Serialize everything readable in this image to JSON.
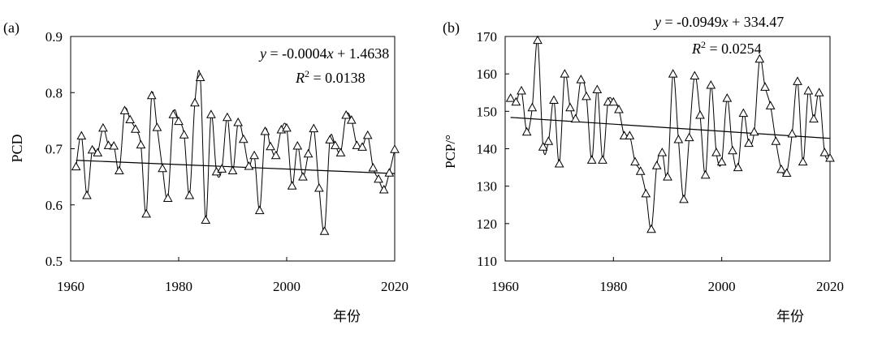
{
  "chart_data": [
    {
      "type": "line",
      "panel_label": "(a)",
      "ylabel": "PCD",
      "xlabel": "年份",
      "xlim": [
        1960,
        2020
      ],
      "ylim": [
        0.5,
        0.9
      ],
      "x_ticks": [
        "1960",
        "1980",
        "2000",
        "2020"
      ],
      "y_ticks": [
        "0.5",
        "0.6",
        "0.7",
        "0.8",
        "0.9"
      ],
      "equation": "y = -0.0004x + 1.4638",
      "r2_text": "R2 = 0.0138",
      "trend": {
        "slope": -0.0004,
        "intercept": 1.4638
      },
      "marker": "triangle",
      "x": [
        1961,
        1962,
        1963,
        1964,
        1965,
        1966,
        1967,
        1968,
        1969,
        1970,
        1971,
        1972,
        1973,
        1974,
        1975,
        1976,
        1977,
        1978,
        1979,
        1980,
        1981,
        1982,
        1983,
        1984,
        1985,
        1986,
        1987,
        1988,
        1989,
        1990,
        1991,
        1992,
        1993,
        1994,
        1995,
        1996,
        1997,
        1998,
        1999,
        2000,
        2001,
        2002,
        2003,
        2004,
        2005,
        2006,
        2007,
        2008,
        2009,
        2010,
        2011,
        2012,
        2013,
        2014,
        2015,
        2016,
        2017,
        2018,
        2019,
        2020
      ],
      "values": [
        0.668,
        0.723,
        0.617,
        0.698,
        0.693,
        0.737,
        0.706,
        0.705,
        0.661,
        0.768,
        0.752,
        0.735,
        0.707,
        0.584,
        0.795,
        0.738,
        0.665,
        0.612,
        0.761,
        0.749,
        0.725,
        0.617,
        0.782,
        0.827,
        0.573,
        0.761,
        0.659,
        0.664,
        0.756,
        0.661,
        0.747,
        0.717,
        0.669,
        0.688,
        0.59,
        0.731,
        0.704,
        0.688,
        0.734,
        0.737,
        0.634,
        0.705,
        0.65,
        0.691,
        0.736,
        0.63,
        0.553,
        0.716,
        0.706,
        0.693,
        0.76,
        0.751,
        0.706,
        0.703,
        0.724,
        0.666,
        0.646,
        0.627,
        0.657,
        0.699
      ]
    },
    {
      "type": "line",
      "panel_label": "(b)",
      "ylabel": "PCP/°",
      "xlabel": "年份",
      "xlim": [
        1960,
        2020
      ],
      "ylim": [
        110,
        170
      ],
      "x_ticks": [
        "1960",
        "1980",
        "2000",
        "2020"
      ],
      "y_ticks": [
        "110",
        "120",
        "130",
        "140",
        "150",
        "160",
        "170"
      ],
      "equation": "y = -0.0949x + 334.47",
      "r2_text": "R2 = 0.0254",
      "trend": {
        "slope": -0.0949,
        "intercept": 334.47
      },
      "marker": "triangle",
      "x": [
        1961,
        1962,
        1963,
        1964,
        1965,
        1966,
        1967,
        1968,
        1969,
        1970,
        1971,
        1972,
        1973,
        1974,
        1975,
        1976,
        1977,
        1978,
        1979,
        1980,
        1981,
        1982,
        1983,
        1984,
        1985,
        1986,
        1987,
        1988,
        1989,
        1990,
        1991,
        1992,
        1993,
        1994,
        1995,
        1996,
        1997,
        1998,
        1999,
        2000,
        2001,
        2002,
        2003,
        2004,
        2005,
        2006,
        2007,
        2008,
        2009,
        2010,
        2011,
        2012,
        2013,
        2014,
        2015,
        2016,
        2017,
        2018,
        2019,
        2020
      ],
      "values": [
        153.5,
        152.5,
        155.5,
        144.5,
        151.0,
        169.0,
        140.5,
        142.0,
        153.0,
        136.0,
        160.0,
        151.0,
        148.0,
        158.5,
        154.0,
        137.0,
        155.8,
        137.0,
        152.5,
        152.5,
        150.5,
        143.5,
        143.5,
        136.5,
        134.0,
        128.0,
        118.5,
        135.5,
        139.0,
        132.5,
        160.0,
        142.5,
        126.5,
        143.0,
        159.5,
        149.0,
        133.0,
        157.0,
        139.0,
        136.5,
        153.5,
        139.5,
        135.0,
        149.5,
        141.5,
        144.5,
        164.0,
        156.5,
        151.5,
        142.0,
        134.5,
        133.5,
        144.0,
        158.0,
        136.5,
        155.5,
        148.0,
        155.0,
        139.0,
        137.5
      ]
    }
  ]
}
